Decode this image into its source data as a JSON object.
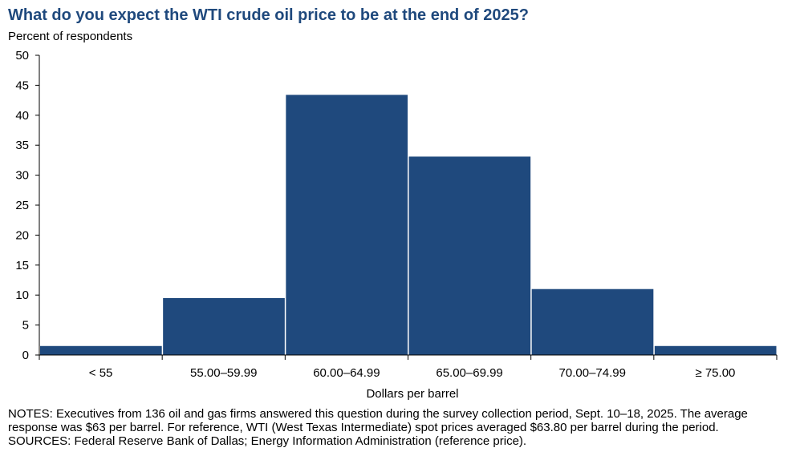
{
  "chart_data": {
    "type": "bar",
    "title": "What do you expect the WTI crude oil price to be at the end of 2025?",
    "ylabel": "Percent of respondents",
    "xlabel": "Dollars per barrel",
    "categories": [
      "< 55",
      "55.00–59.99",
      "60.00–64.99",
      "65.00–69.99",
      "70.00–74.99",
      "≥ 75.00"
    ],
    "values": [
      1.5,
      9.5,
      43.4,
      33.1,
      11.0,
      1.5
    ],
    "ylim": [
      0,
      50
    ],
    "yticks": [
      0,
      5,
      10,
      15,
      20,
      25,
      30,
      35,
      40,
      45,
      50
    ],
    "bar_color": "#1f497d",
    "grid": false
  },
  "notes": {
    "notes_text": "NOTES: Executives from 136 oil and gas firms answered this question during the survey collection period, Sept. 10–18, 2025. The average response was $63 per barrel. For reference, WTI (West Texas Intermediate) spot prices averaged $63.80 per barrel during the period.",
    "sources_text": "SOURCES: Federal Reserve Bank of Dallas; Energy Information Administration (reference price)."
  }
}
